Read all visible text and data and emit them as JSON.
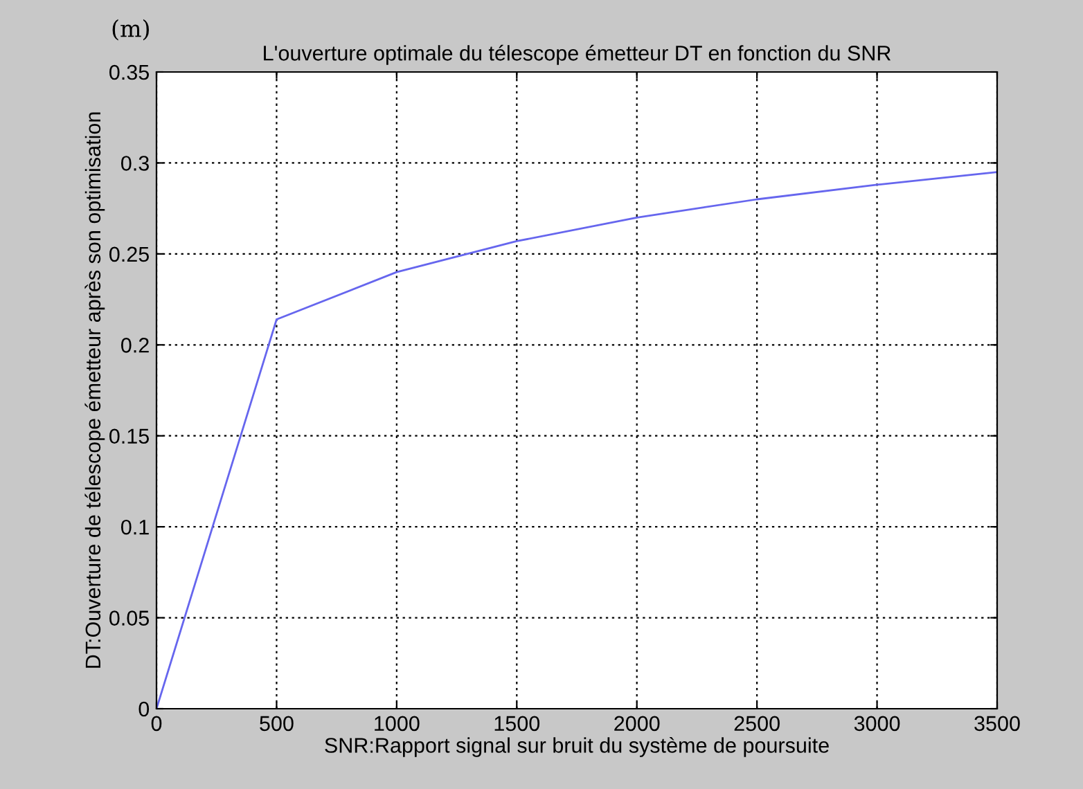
{
  "chart_data": {
    "type": "line",
    "title": "L'ouverture optimale du télescope émetteur DT en fonction du SNR",
    "xlabel": "SNR:Rapport signal sur bruit du système de poursuite",
    "ylabel": "DT:Ouverture de télescope émetteur après son optimisation",
    "annotations": [
      "(m)"
    ],
    "x": [
      0,
      500,
      1000,
      1500,
      2000,
      2500,
      3000,
      3500
    ],
    "series": [
      {
        "color": "#6666ee",
        "values": [
          0,
          0.214,
          0.24,
          0.257,
          0.27,
          0.28,
          0.288,
          0.295
        ]
      }
    ],
    "xlim": [
      0,
      3500
    ],
    "xticks": [
      0,
      500,
      1000,
      1500,
      2000,
      2500,
      3000,
      3500
    ],
    "ylim": [
      0,
      0.35
    ],
    "yticks": [
      0,
      0.05,
      0.1,
      0.15,
      0.2,
      0.25,
      0.3,
      0.35
    ],
    "grid": true,
    "marker": "none",
    "line_style": "solid"
  }
}
